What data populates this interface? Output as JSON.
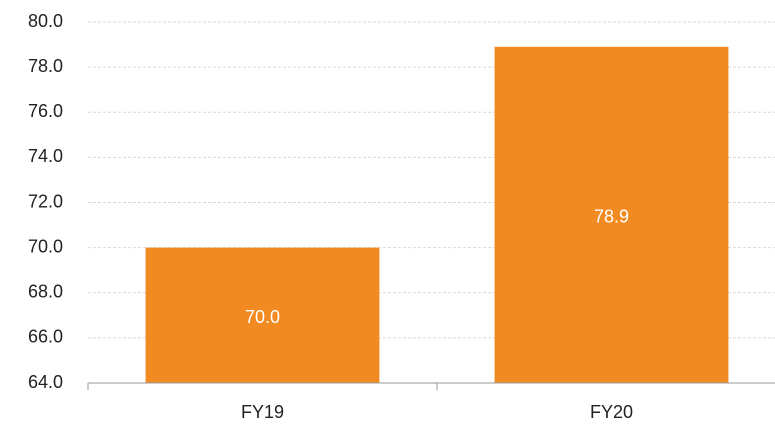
{
  "chart_data": {
    "type": "bar",
    "categories": [
      "FY19",
      "FY20"
    ],
    "values": [
      70.0,
      78.9
    ],
    "value_labels": [
      "70.0",
      "78.9"
    ],
    "color": "#f28a22",
    "ylim": [
      64,
      80
    ],
    "yticks": [
      {
        "value": 64,
        "label": "64.0"
      },
      {
        "value": 66,
        "label": "66.0"
      },
      {
        "value": 68,
        "label": "68.0"
      },
      {
        "value": 70,
        "label": "70.0"
      },
      {
        "value": 72,
        "label": "72.0"
      },
      {
        "value": 74,
        "label": "74.0"
      },
      {
        "value": 76,
        "label": "76.0"
      },
      {
        "value": 78,
        "label": "78.0"
      },
      {
        "value": 80,
        "label": "80.0"
      }
    ],
    "grid": true
  }
}
